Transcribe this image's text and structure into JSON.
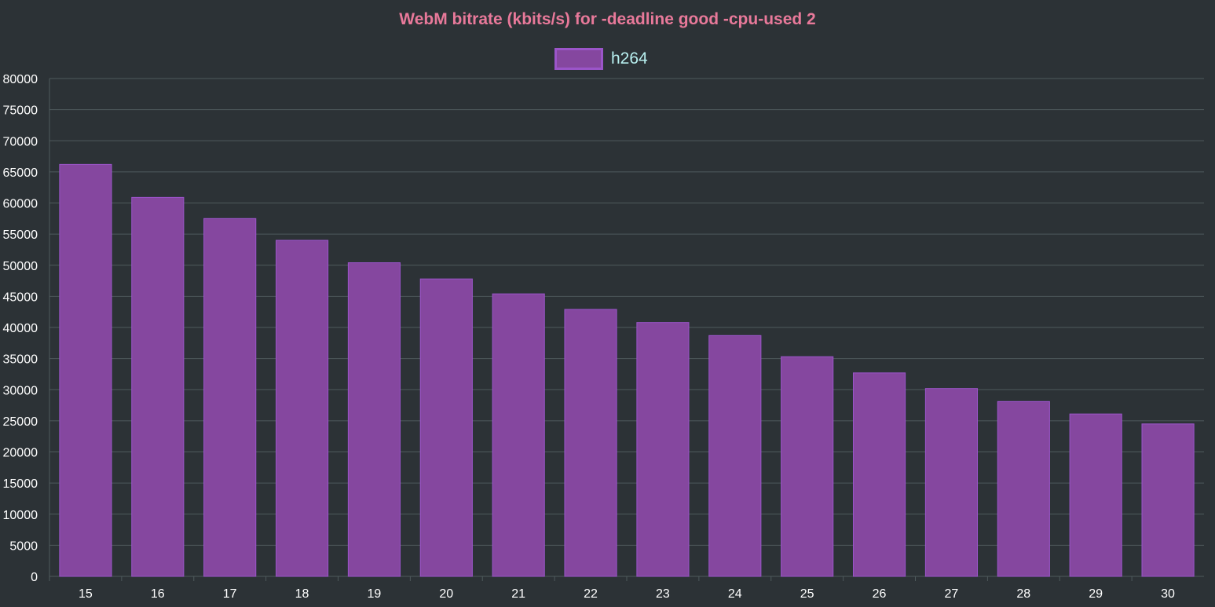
{
  "chart_data": {
    "type": "bar",
    "title": "WebM bitrate (kbits/s) for -deadline good -cpu-used 2",
    "xlabel": "",
    "ylabel": "",
    "categories": [
      "15",
      "16",
      "17",
      "18",
      "19",
      "20",
      "21",
      "22",
      "23",
      "24",
      "25",
      "26",
      "27",
      "28",
      "29",
      "30"
    ],
    "series": [
      {
        "name": "h264",
        "values": [
          66200,
          60900,
          57500,
          54000,
          50400,
          47800,
          45400,
          42900,
          40800,
          38700,
          35300,
          32700,
          30200,
          28100,
          26100,
          24500
        ]
      }
    ],
    "ylim": [
      0,
      80000
    ],
    "yticks": [
      "0",
      "5000",
      "10000",
      "15000",
      "20000",
      "25000",
      "30000",
      "35000",
      "40000",
      "45000",
      "50000",
      "55000",
      "60000",
      "65000",
      "70000",
      "75000",
      "80000"
    ],
    "grid": true,
    "legend_position": "top"
  },
  "colors": {
    "background": "#2c3236",
    "title": "#e8799a",
    "bar_fill": "#85479f",
    "bar_border": "#9b55c9",
    "grid": "#4e5a5c",
    "axis_text": "#ffffff",
    "legend_text": "#b8f0f0"
  }
}
